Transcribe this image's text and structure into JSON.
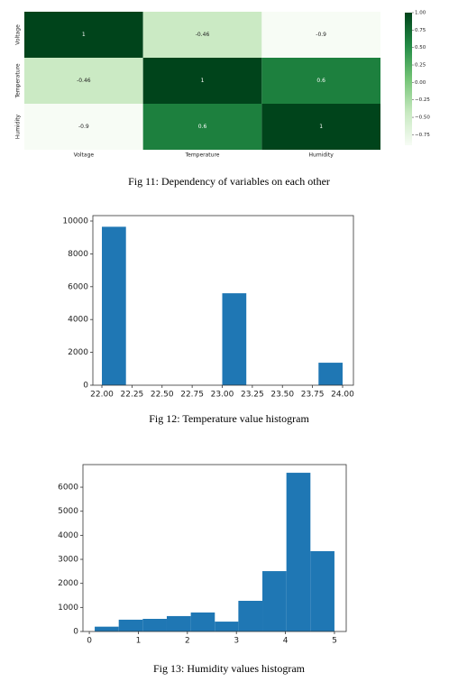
{
  "chart_data": [
    {
      "type": "heatmap",
      "x_categories": [
        "Voltage",
        "Temperature",
        "Humidity"
      ],
      "y_categories": [
        "Voltage",
        "Temperature",
        "Humidity"
      ],
      "values": [
        [
          1,
          -0.46,
          -0.9
        ],
        [
          -0.46,
          1,
          0.6
        ],
        [
          -0.9,
          0.6,
          1
        ]
      ],
      "colors": [
        "#f7fcf5",
        "#c7e9c0",
        "#74c476",
        "#238b45",
        "#00441b"
      ],
      "clim": [
        -0.9,
        1
      ],
      "cticks": [
        {
          "value": 1,
          "label": "1.00"
        },
        {
          "value": 0.75,
          "label": "0.75"
        },
        {
          "value": 0.5,
          "label": "0.50"
        },
        {
          "value": 0.25,
          "label": "0.25"
        },
        {
          "value": 0,
          "label": "0.00"
        },
        {
          "value": -0.25,
          "label": "−0.25"
        },
        {
          "value": -0.5,
          "label": "−0.50"
        },
        {
          "value": -0.75,
          "label": "−0.75"
        }
      ],
      "caption": "Fig 11: Dependency of variables on each other"
    },
    {
      "type": "histogram",
      "color": "#1f77b4",
      "bins": [
        22.0,
        22.2,
        22.4,
        22.6,
        22.8,
        23.0,
        23.2,
        23.4,
        23.6,
        23.8,
        24.0
      ],
      "values": [
        9650,
        0,
        0,
        0,
        0,
        5600,
        0,
        0,
        0,
        1370
      ],
      "xlim": [
        21.925,
        24.09
      ],
      "ylim": [
        0,
        10330
      ],
      "xticks": [
        {
          "value": 22,
          "label": "22.00"
        },
        {
          "value": 22.25,
          "label": "22.25"
        },
        {
          "value": 22.5,
          "label": "22.50"
        },
        {
          "value": 22.75,
          "label": "22.75"
        },
        {
          "value": 23,
          "label": "23.00"
        },
        {
          "value": 23.25,
          "label": "23.25"
        },
        {
          "value": 23.5,
          "label": "23.50"
        },
        {
          "value": 23.75,
          "label": "23.75"
        },
        {
          "value": 24,
          "label": "24.00"
        }
      ],
      "yticks": [
        0,
        2000,
        4000,
        6000,
        8000,
        10000
      ],
      "caption": "Fig 12: Temperature value histogram"
    },
    {
      "type": "histogram",
      "color": "#1f77b4",
      "bins": [
        0.11,
        0.6,
        1.09,
        1.58,
        2.07,
        2.56,
        3.04,
        3.53,
        4.02,
        4.51,
        5.0
      ],
      "values": [
        200,
        490,
        525,
        640,
        790,
        410,
        1275,
        2510,
        6600,
        3340
      ],
      "xlim": [
        -0.13,
        5.24
      ],
      "ylim": [
        0,
        6940
      ],
      "xticks": [
        0,
        1,
        2,
        3,
        4,
        5
      ],
      "yticks": [
        0,
        1000,
        2000,
        3000,
        4000,
        5000,
        6000
      ],
      "caption": "Fig 13: Humidity values histogram"
    }
  ]
}
